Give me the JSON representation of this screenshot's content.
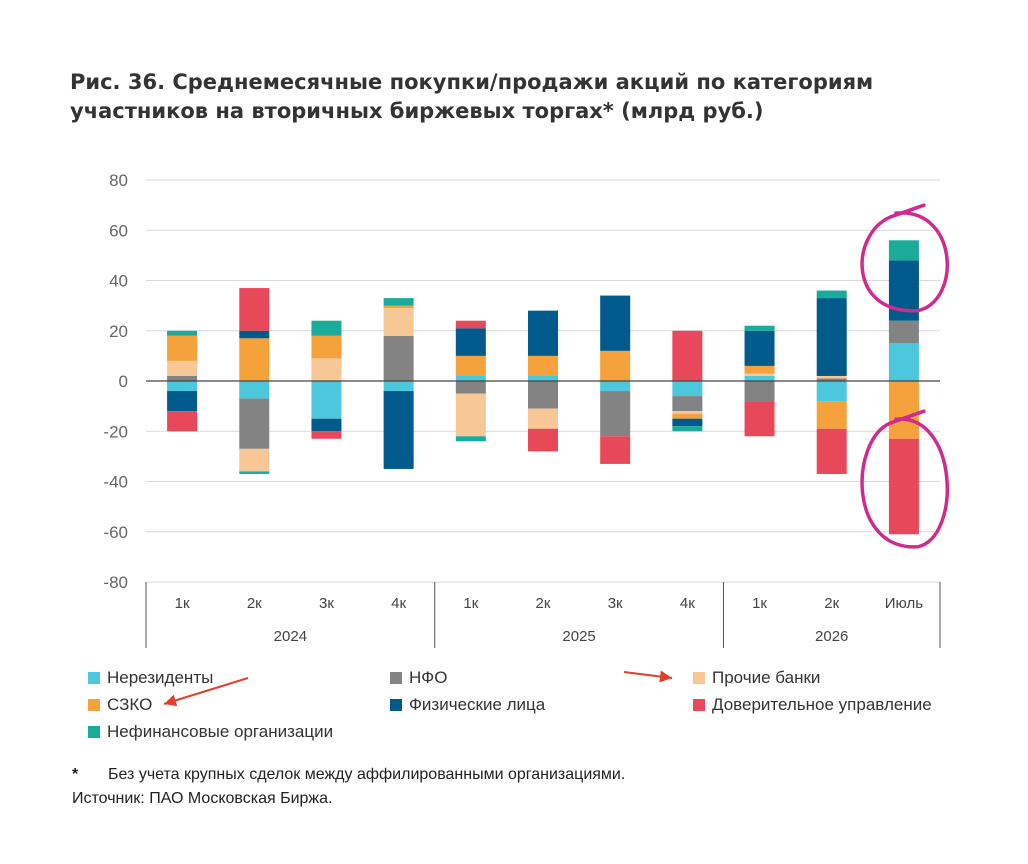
{
  "title": "Рис. 36. Среднемесячные покупки/продажи акций по категориям участников на вторичных биржевых торгах* (млрд руб.)",
  "chart_data": {
    "type": "bar",
    "stacked": true,
    "ylim": [
      -80,
      80
    ],
    "yticks": [
      80,
      60,
      40,
      20,
      0,
      -20,
      -40,
      -60,
      -80
    ],
    "categories": [
      "1к",
      "2к",
      "3к",
      "4к",
      "1к",
      "2к",
      "3к",
      "4к",
      "1к",
      "2к",
      "Июль"
    ],
    "groups": [
      {
        "label": "2024",
        "categories": [
          "1к",
          "2к",
          "3к",
          "4к"
        ]
      },
      {
        "label": "2025",
        "categories": [
          "1к",
          "2к",
          "3к",
          "4к"
        ]
      },
      {
        "label": "2026",
        "categories": [
          "1к",
          "2к",
          "Июль"
        ]
      }
    ],
    "series": [
      {
        "name": "Нерезиденты",
        "color": "#4dc7db",
        "values": [
          -4,
          -7,
          -15,
          -4,
          2,
          2,
          -4,
          -6,
          2,
          -8,
          15
        ]
      },
      {
        "name": "НФО",
        "color": "#838383",
        "values": [
          2,
          -20,
          0,
          18,
          -5,
          -11,
          -18,
          -6,
          -8,
          1,
          9
        ]
      },
      {
        "name": "Прочие банки",
        "color": "#f7c795",
        "values": [
          6,
          -9,
          9,
          11,
          -17,
          -8,
          0,
          -1,
          1,
          1,
          0
        ]
      },
      {
        "name": "СЗКО",
        "color": "#f5a23c",
        "values": [
          10,
          17,
          9,
          1,
          8,
          8,
          12,
          -2,
          3,
          -11,
          -23
        ]
      },
      {
        "name": "Физические лица",
        "color": "#005b8c",
        "values": [
          -8,
          3,
          -5,
          -31,
          11,
          18,
          22,
          -3,
          14,
          31,
          24
        ]
      },
      {
        "name": "Доверительное управление",
        "color": "#e8495a",
        "values": [
          -8,
          17,
          -3,
          0,
          3,
          -9,
          -11,
          20,
          -14,
          -18,
          -38
        ]
      },
      {
        "name": "Нефинансовые организации",
        "color": "#1aab9b",
        "values": [
          2,
          -1,
          6,
          3,
          -2,
          0,
          0,
          -2,
          2,
          3,
          8
        ]
      }
    ],
    "annotations": [
      {
        "type": "hand-drawn-circle",
        "color": "#d12a8f",
        "target": "Июль",
        "range": [
          28,
          66
        ]
      },
      {
        "type": "hand-drawn-circle",
        "color": "#d12a8f",
        "target": "Июль",
        "range": [
          -66,
          -16
        ]
      },
      {
        "type": "arrow",
        "color": "#e0402a",
        "target": "СЗКО"
      },
      {
        "type": "arrow",
        "color": "#e0402a",
        "target": "Прочие банки"
      }
    ]
  },
  "legend": {
    "items": [
      {
        "label": "Нерезиденты",
        "color": "#4dc7db"
      },
      {
        "label": "НФО",
        "color": "#838383"
      },
      {
        "label": "Прочие банки",
        "color": "#f7c795"
      },
      {
        "label": "СЗКО",
        "color": "#f5a23c"
      },
      {
        "label": "Физические лица",
        "color": "#005b8c"
      },
      {
        "label": "Доверительное управление",
        "color": "#e8495a"
      },
      {
        "label": "Нефинансовые организации",
        "color": "#1aab9b"
      }
    ]
  },
  "footnote": {
    "marker": "*",
    "text": "Без учета крупных сделок между аффилированными организациями."
  },
  "source": "Источник: ПАО Московская Биржа."
}
